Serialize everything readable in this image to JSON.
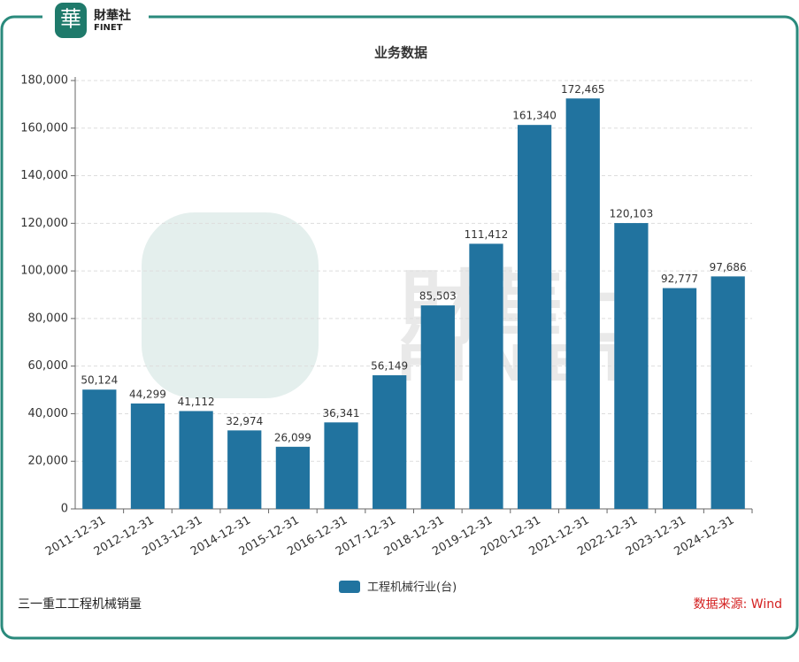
{
  "logo": {
    "name": "財華社",
    "sub": "FINET"
  },
  "chart_data": {
    "type": "bar",
    "title": "业务数据",
    "categories": [
      "2011-12-31",
      "2012-12-31",
      "2013-12-31",
      "2014-12-31",
      "2015-12-31",
      "2016-12-31",
      "2017-12-31",
      "2018-12-31",
      "2019-12-31",
      "2020-12-31",
      "2021-12-31",
      "2022-12-31",
      "2023-12-31",
      "2024-12-31"
    ],
    "series": [
      {
        "name": "工程机械行业(台)",
        "color": "#21739f",
        "values": [
          50124,
          44299,
          41112,
          32974,
          26099,
          36341,
          56149,
          85503,
          111412,
          161340,
          172465,
          120103,
          92777,
          97686
        ],
        "value_labels": [
          "50,124",
          "44,299",
          "41,112",
          "32,974",
          "26,099",
          "36,341",
          "56,149",
          "85,503",
          "111,412",
          "161,340",
          "172,465",
          "120,103",
          "92,777",
          "97,686"
        ]
      }
    ],
    "ylim": [
      0,
      180000
    ],
    "yticks": [
      0,
      {
        "value": 20000,
        "label": "20,000"
      },
      {
        "value": 40000,
        "label": "40,000"
      },
      {
        "value": 60000,
        "label": "60,000"
      },
      {
        "value": 80000,
        "label": "80,000"
      },
      {
        "value": 100000,
        "label": "100,000"
      },
      {
        "value": 120000,
        "label": "120,000"
      },
      {
        "value": 140000,
        "label": "140,000"
      },
      {
        "value": 160000,
        "label": "160,000"
      },
      {
        "value": 180000,
        "label": "180,000"
      }
    ],
    "grid": true,
    "legend": "bottom"
  },
  "footer": {
    "note": "三一重工工程机械销量",
    "source": "数据来源: Wind"
  }
}
